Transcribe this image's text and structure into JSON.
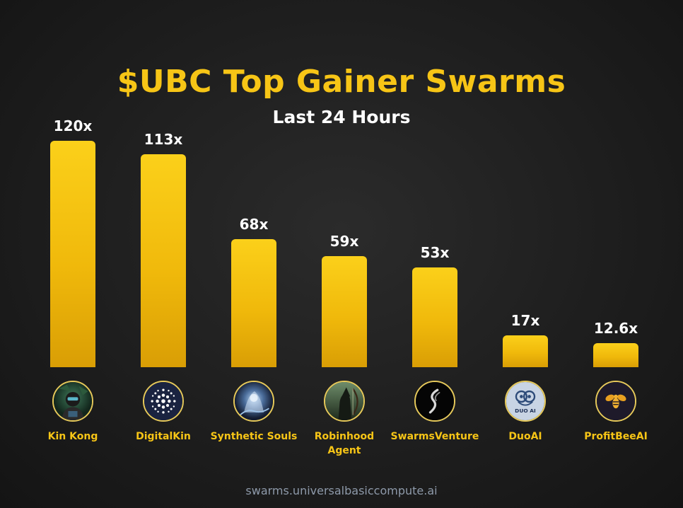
{
  "chart_data": {
    "type": "bar",
    "title": "$UBC Top Gainer Swarms",
    "subtitle": "Last 24 Hours",
    "categories": [
      "Kin Kong",
      "DigitalKin",
      "Synthetic Souls",
      "Robinhood Agent",
      "SwarmsVenture",
      "DuoAI",
      "ProfitBeeAI"
    ],
    "values": [
      120,
      113,
      68,
      59,
      53,
      17,
      12.6
    ],
    "value_labels": [
      "120x",
      "113x",
      "68x",
      "59x",
      "53x",
      "17x",
      "12.6x"
    ],
    "icons": [
      "kin-kong-avatar-icon",
      "digitalkin-avatar-icon",
      "synthetic-souls-avatar-icon",
      "robinhood-agent-avatar-icon",
      "swarmsventure-avatar-icon",
      "duoai-avatar-icon",
      "profitbeeai-avatar-icon"
    ],
    "icon_texts": {
      "duoai": "DUO AI"
    },
    "ylim": [
      0,
      120
    ],
    "grid": false,
    "colors": {
      "bar_top": "#fbd01a",
      "bar_bottom": "#d99e05",
      "title": "#f7c516",
      "label": "#f7c516",
      "value_text": "#ffffff"
    }
  },
  "footer": "swarms.universalbasiccompute.ai"
}
